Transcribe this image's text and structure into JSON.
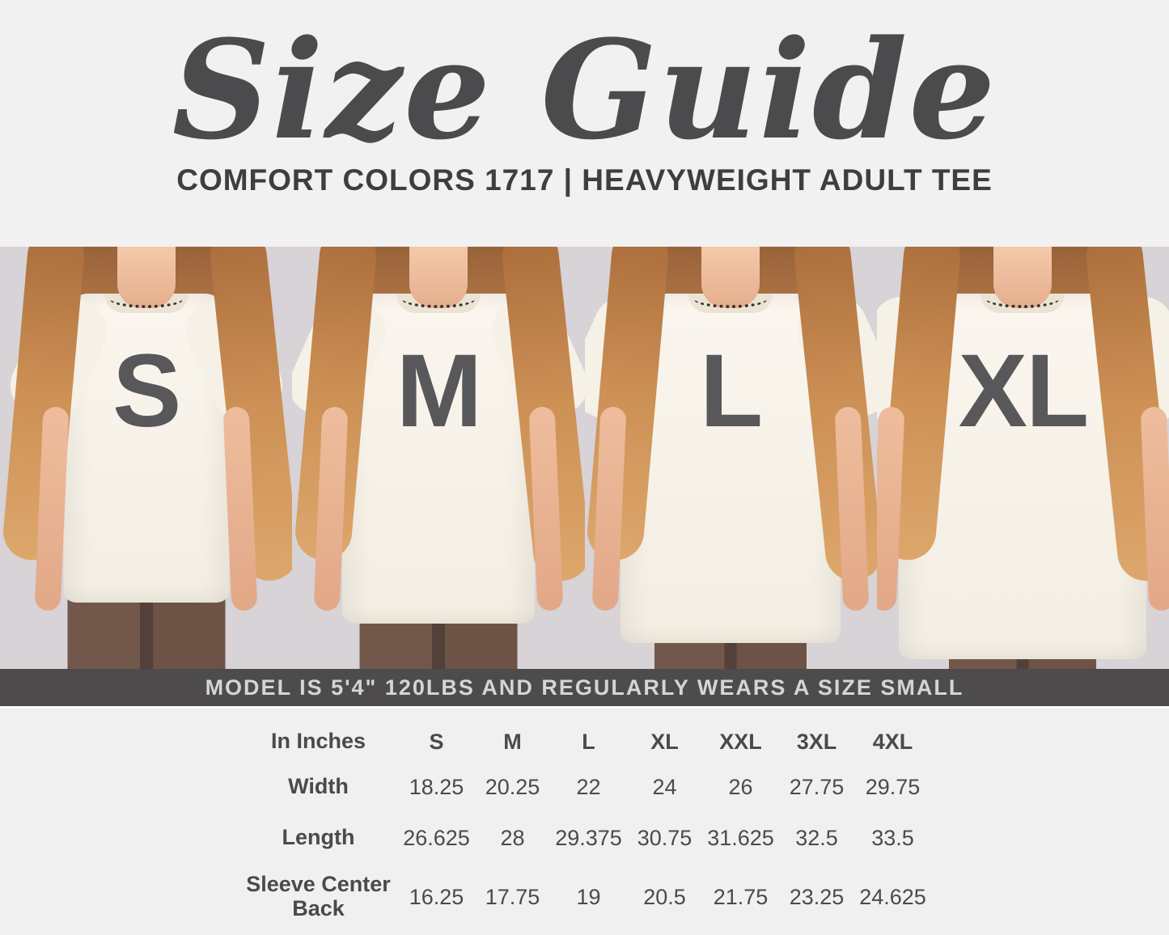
{
  "header": {
    "title": "Size Guide",
    "subtitle": "COMFORT COLORS 1717 | HEAVYWEIGHT ADULT TEE"
  },
  "models": {
    "sizes": [
      "S",
      "M",
      "L",
      "XL"
    ]
  },
  "banner": {
    "text": "MODEL IS 5'4\" 120LBS AND REGULARLY WEARS A SIZE SMALL"
  },
  "size_table": {
    "unit_label": "In Inches",
    "columns": [
      "S",
      "M",
      "L",
      "XL",
      "XXL",
      "3XL",
      "4XL"
    ],
    "rows": [
      {
        "label": "Width",
        "values": [
          "18.25",
          "20.25",
          "22",
          "24",
          "26",
          "27.75",
          "29.75"
        ]
      },
      {
        "label": "Length",
        "values": [
          "26.625",
          "28",
          "29.375",
          "30.75",
          "31.625",
          "32.5",
          "33.5"
        ]
      },
      {
        "label": "Sleeve Center Back",
        "values": [
          "16.25",
          "17.75",
          "19",
          "20.5",
          "21.75",
          "23.25",
          "24.625"
        ]
      }
    ]
  },
  "colors": {
    "text": "#4a4a4b",
    "banner_bg": "#4e4b4c",
    "photo_bg": "#d7d3d7",
    "shirt": "#f7f3ec",
    "size_letter": "#58575a",
    "page_bg": "#f1f0f0"
  }
}
